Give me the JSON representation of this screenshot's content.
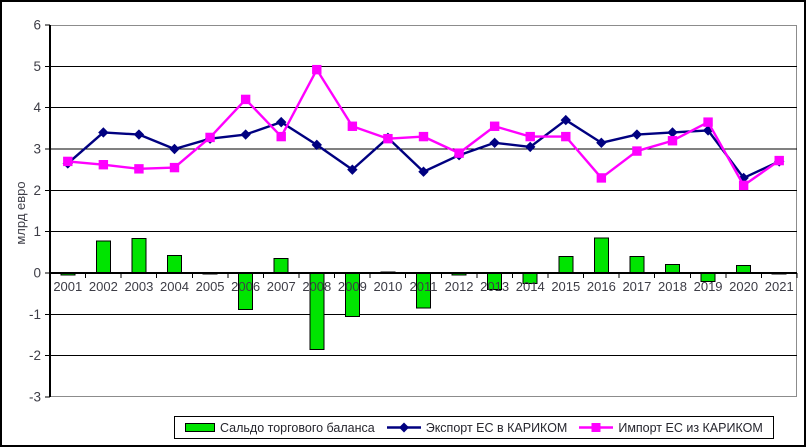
{
  "chart_data": {
    "type": "combo",
    "title": "",
    "xlabel": "",
    "ylabel": "млрд евро",
    "ylim": [
      -3,
      6
    ],
    "yticks": [
      6,
      5,
      4,
      3,
      2,
      1,
      0,
      -1,
      -2,
      -3
    ],
    "grid": true,
    "legend_position": "bottom",
    "categories": [
      "2001",
      "2002",
      "2003",
      "2004",
      "2005",
      "2006",
      "2007",
      "2008",
      "2009",
      "2010",
      "2011",
      "2012",
      "2013",
      "2014",
      "2015",
      "2016",
      "2017",
      "2018",
      "2019",
      "2020",
      "2021"
    ],
    "series": [
      {
        "name": "Сальдо торгового баланса",
        "type": "bar",
        "color": "#00e400",
        "border_color": "#000000",
        "values": [
          -0.05,
          0.78,
          0.83,
          0.42,
          -0.02,
          -0.88,
          0.35,
          -1.85,
          -1.05,
          0.02,
          -0.85,
          -0.05,
          -0.4,
          -0.25,
          0.4,
          0.85,
          0.4,
          0.2,
          -0.2,
          0.18,
          -0.02
        ]
      },
      {
        "name": "Экспорт ЕС в КАРИКОМ",
        "type": "line",
        "marker": "diamond",
        "color": "#000080",
        "values": [
          2.65,
          3.4,
          3.35,
          3.0,
          3.25,
          3.35,
          3.65,
          3.1,
          2.5,
          3.27,
          2.45,
          2.85,
          3.15,
          3.05,
          3.7,
          3.15,
          3.35,
          3.4,
          3.45,
          2.3,
          2.7
        ]
      },
      {
        "name": "Импорт ЕС из КАРИКОМ",
        "type": "line",
        "marker": "square",
        "color": "#ff00ff",
        "values": [
          2.7,
          2.62,
          2.52,
          2.55,
          3.28,
          4.2,
          3.3,
          4.92,
          3.55,
          3.25,
          3.3,
          2.9,
          3.55,
          3.3,
          3.3,
          2.3,
          2.95,
          3.2,
          3.65,
          2.12,
          2.72
        ]
      }
    ]
  },
  "colors": {
    "gridline": "#000000",
    "plot_border": "#8c8c8c",
    "axis": "#000000",
    "tick_text": "#3d3d46",
    "background": "#ffffff"
  }
}
